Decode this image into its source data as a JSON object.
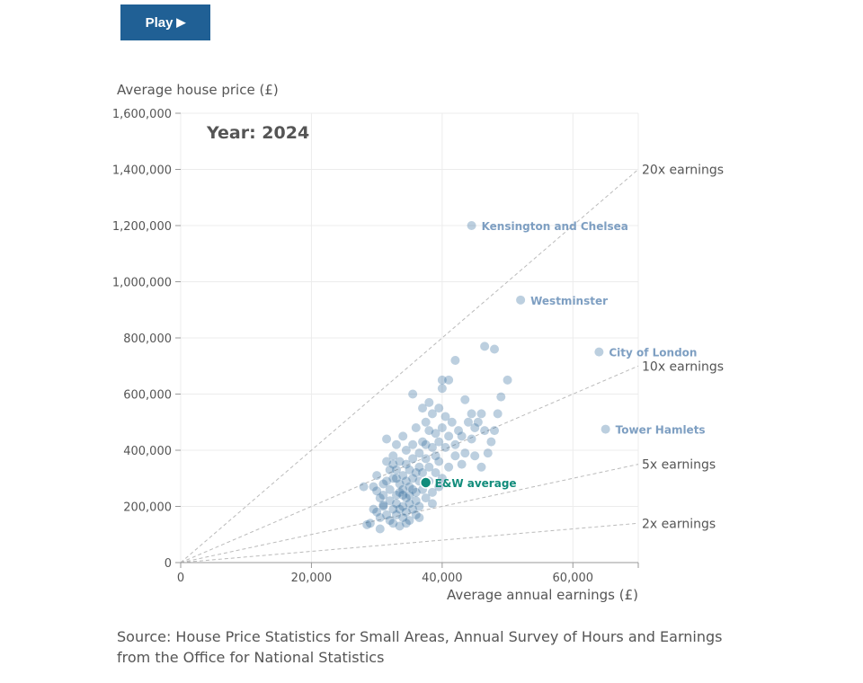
{
  "controls": {
    "play_label": "Play",
    "play_icon": "▶"
  },
  "source": "Source: House Price Statistics for Small Areas, Annual Survey of Hours and Earnings from the Office for National Statistics",
  "chart_data": {
    "type": "scatter",
    "title": "Year: 2024",
    "xlabel": "Average annual earnings (£)",
    "ylabel": "Average house price (£)",
    "xlim": [
      0,
      70000
    ],
    "ylim": [
      0,
      1600000
    ],
    "x_ticks": [
      0,
      20000,
      40000,
      60000
    ],
    "x_tick_labels": [
      "0",
      "20,000",
      "40,000",
      "60,000"
    ],
    "y_ticks": [
      0,
      200000,
      400000,
      600000,
      800000,
      1000000,
      1200000,
      1400000,
      1600000
    ],
    "y_tick_labels": [
      "0",
      "200,000",
      "400,000",
      "600,000",
      "800,000",
      "1,000,000",
      "1,200,000",
      "1,400,000",
      "1,600,000"
    ],
    "grid": true,
    "colors": {
      "points": "#206095",
      "labelled": "#7e9fc2",
      "average": "#118c7b",
      "ratio_lines": "#bbbbbb"
    },
    "ratio_lines": [
      {
        "multiple": 20,
        "label": "20x earnings"
      },
      {
        "multiple": 10,
        "label": "10x earnings"
      },
      {
        "multiple": 5,
        "label": "5x earnings"
      },
      {
        "multiple": 2,
        "label": "2x earnings"
      }
    ],
    "labelled_points": [
      {
        "name": "Kensington and Chelsea",
        "x": 44500,
        "y": 1200000
      },
      {
        "name": "Westminster",
        "x": 52000,
        "y": 935000
      },
      {
        "name": "City of London",
        "x": 64000,
        "y": 750000
      },
      {
        "name": "Tower Hamlets",
        "x": 65000,
        "y": 475000
      }
    ],
    "average_point": {
      "name": "E&W average",
      "x": 37500,
      "y": 285000
    },
    "points": [
      [
        28500,
        135000
      ],
      [
        29000,
        140000
      ],
      [
        29500,
        270000
      ],
      [
        30000,
        310000
      ],
      [
        30000,
        180000
      ],
      [
        30500,
        120000
      ],
      [
        30500,
        160000
      ],
      [
        31000,
        200000
      ],
      [
        31000,
        240000
      ],
      [
        31000,
        280000
      ],
      [
        31500,
        360000
      ],
      [
        31500,
        440000
      ],
      [
        31500,
        170000
      ],
      [
        32000,
        220000
      ],
      [
        32000,
        150000
      ],
      [
        32000,
        330000
      ],
      [
        32000,
        260000
      ],
      [
        32500,
        190000
      ],
      [
        32500,
        300000
      ],
      [
        32500,
        380000
      ],
      [
        32500,
        140000
      ],
      [
        33000,
        240000
      ],
      [
        33000,
        420000
      ],
      [
        33000,
        210000
      ],
      [
        33000,
        170000
      ],
      [
        33000,
        330000
      ],
      [
        33500,
        280000
      ],
      [
        33500,
        250000
      ],
      [
        33500,
        130000
      ],
      [
        33500,
        360000
      ],
      [
        34000,
        450000
      ],
      [
        34000,
        200000
      ],
      [
        34000,
        310000
      ],
      [
        34000,
        160000
      ],
      [
        34000,
        260000
      ],
      [
        34500,
        230000
      ],
      [
        34500,
        350000
      ],
      [
        34500,
        290000
      ],
      [
        34500,
        180000
      ],
      [
        34500,
        400000
      ],
      [
        35000,
        270000
      ],
      [
        35000,
        210000
      ],
      [
        35000,
        330000
      ],
      [
        35000,
        150000
      ],
      [
        35000,
        240000
      ],
      [
        35500,
        600000
      ],
      [
        35500,
        300000
      ],
      [
        35500,
        370000
      ],
      [
        35500,
        190000
      ],
      [
        35500,
        420000
      ],
      [
        36000,
        250000
      ],
      [
        36000,
        320000
      ],
      [
        36000,
        220000
      ],
      [
        36000,
        480000
      ],
      [
        36000,
        170000
      ],
      [
        36500,
        340000
      ],
      [
        36500,
        290000
      ],
      [
        36500,
        390000
      ],
      [
        36500,
        200000
      ],
      [
        37000,
        550000
      ],
      [
        37000,
        430000
      ],
      [
        37000,
        320000
      ],
      [
        37000,
        260000
      ],
      [
        37500,
        500000
      ],
      [
        37500,
        370000
      ],
      [
        37500,
        230000
      ],
      [
        38000,
        570000
      ],
      [
        38000,
        470000
      ],
      [
        38000,
        340000
      ],
      [
        38000,
        290000
      ],
      [
        38500,
        410000
      ],
      [
        38500,
        530000
      ],
      [
        38500,
        250000
      ],
      [
        39000,
        460000
      ],
      [
        39000,
        320000
      ],
      [
        39000,
        380000
      ],
      [
        39500,
        550000
      ],
      [
        39500,
        430000
      ],
      [
        39500,
        360000
      ],
      [
        40000,
        650000
      ],
      [
        40000,
        620000
      ],
      [
        40000,
        480000
      ],
      [
        40000,
        300000
      ],
      [
        40500,
        520000
      ],
      [
        40500,
        410000
      ],
      [
        41000,
        650000
      ],
      [
        41000,
        450000
      ],
      [
        41000,
        340000
      ],
      [
        41500,
        500000
      ],
      [
        42000,
        720000
      ],
      [
        42000,
        420000
      ],
      [
        42000,
        380000
      ],
      [
        42500,
        470000
      ],
      [
        43000,
        450000
      ],
      [
        43000,
        350000
      ],
      [
        43500,
        580000
      ],
      [
        43500,
        390000
      ],
      [
        44000,
        500000
      ],
      [
        44500,
        530000
      ],
      [
        44500,
        440000
      ],
      [
        45000,
        480000
      ],
      [
        45000,
        380000
      ],
      [
        45500,
        500000
      ],
      [
        46000,
        530000
      ],
      [
        46000,
        340000
      ],
      [
        46500,
        770000
      ],
      [
        46500,
        470000
      ],
      [
        47000,
        390000
      ],
      [
        47500,
        430000
      ],
      [
        48000,
        760000
      ],
      [
        48000,
        470000
      ],
      [
        48500,
        530000
      ],
      [
        49000,
        590000
      ],
      [
        50000,
        650000
      ],
      [
        28000,
        270000
      ],
      [
        30500,
        230000
      ],
      [
        31500,
        290000
      ],
      [
        32500,
        350000
      ],
      [
        33500,
        190000
      ],
      [
        34500,
        140000
      ],
      [
        35500,
        260000
      ],
      [
        36500,
        160000
      ],
      [
        37500,
        420000
      ],
      [
        38500,
        210000
      ],
      [
        39500,
        270000
      ],
      [
        29500,
        190000
      ],
      [
        30000,
        255000
      ],
      [
        31000,
        205000
      ],
      [
        33000,
        300000
      ],
      [
        34000,
        240000
      ]
    ]
  }
}
